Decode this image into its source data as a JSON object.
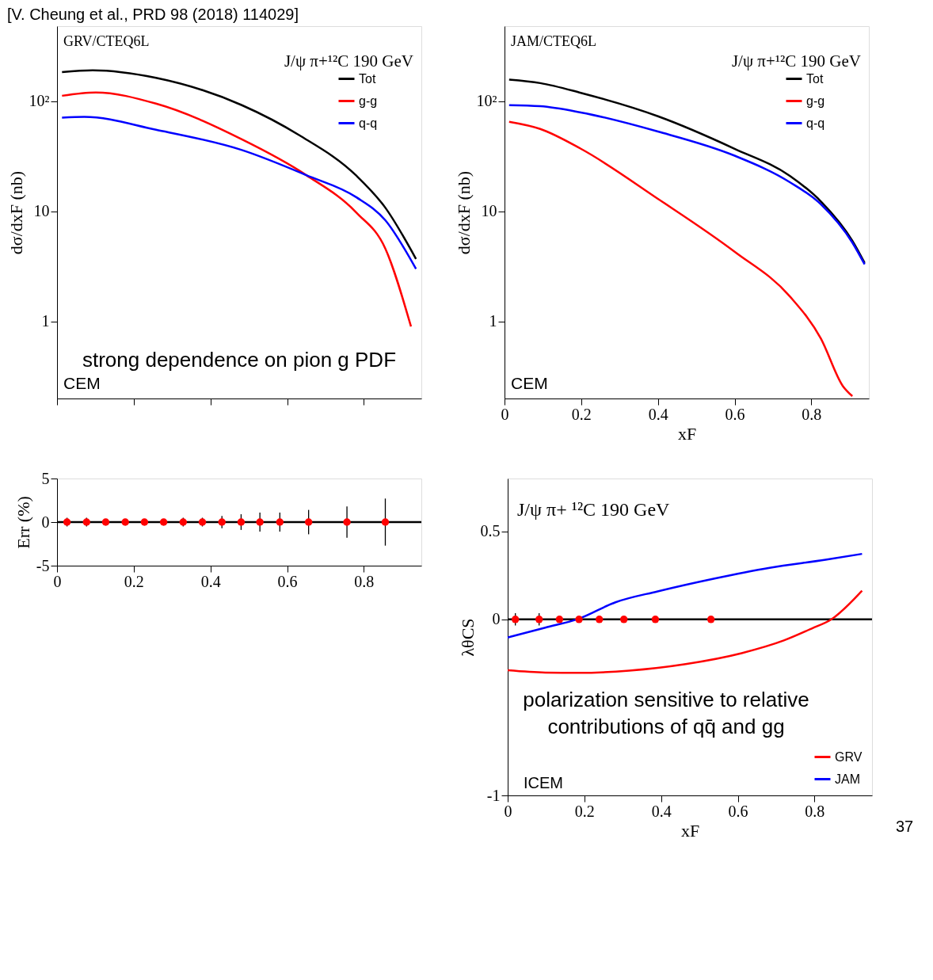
{
  "chart_data": [
    {
      "type": "line",
      "title": "[V. Cheung et al., PRD 98 (2018) 114029]",
      "ylabel": "dσ/dxF (nb)",
      "log": "y",
      "xlim": [
        0,
        0.95
      ],
      "ylim": [
        0.2,
        480
      ],
      "xticks": [
        0,
        0.2,
        0.4,
        0.6,
        0.8
      ],
      "yticks": [
        1,
        10,
        {
          "value": 100,
          "label": "10²"
        }
      ],
      "tick_labels": "y",
      "legend": "top right",
      "annotations": [
        "GRV/CTEQ6L",
        "J/ψ  π+¹²C  190 GeV",
        "CEM",
        "strong dependence on pion g PDF"
      ],
      "series": [
        {
          "name": "Tot",
          "color": "#000000",
          "x": [
            0.013,
            0.093,
            0.258,
            0.482,
            0.632,
            0.781,
            0.856,
            0.936
          ],
          "values": [
            184,
            191,
            163,
            92,
            49,
            21,
            10.8,
            3.7
          ]
        },
        {
          "name": "g-g",
          "color": "#ff0000",
          "x": [
            0.013,
            0.101,
            0.258,
            0.482,
            0.65,
            0.781,
            0.856,
            0.923
          ],
          "values": [
            112,
            120,
            95,
            45,
            21.3,
            9.7,
            4.6,
            0.9
          ]
        },
        {
          "name": "q-q",
          "color": "#0000ff",
          "x": [
            0.013,
            0.071,
            0.258,
            0.482,
            0.65,
            0.781,
            0.856,
            0.936
          ],
          "values": [
            71,
            72,
            55,
            36,
            21.3,
            13.4,
            8.3,
            3.0
          ]
        }
      ]
    },
    {
      "type": "line",
      "ylabel": "dσ/dxF (nb)",
      "xlabel": "xF",
      "log": "y",
      "xlim": [
        0,
        0.95
      ],
      "ylim": [
        0.2,
        480
      ],
      "xticks": [
        0,
        0.2,
        0.4,
        0.6,
        0.8
      ],
      "yticks": [
        1,
        10,
        {
          "value": 100,
          "label": "10²"
        }
      ],
      "legend": "top right",
      "annotations": [
        "JAM/CTEQ6L",
        "J/ψ  π+¹²C  190 GeV",
        "CEM"
      ],
      "series": [
        {
          "name": "Tot",
          "color": "#000000",
          "x": [
            0.012,
            0.093,
            0.199,
            0.4,
            0.6,
            0.744,
            0.825,
            0.907,
            0.939
          ],
          "values": [
            157,
            146,
            119,
            73,
            37,
            21,
            12.3,
            5.4,
            3.4
          ]
        },
        {
          "name": "g-g",
          "color": "#ff0000",
          "x": [
            0.012,
            0.093,
            0.199,
            0.4,
            0.6,
            0.744,
            0.825,
            0.882,
            0.907
          ],
          "values": [
            65,
            56,
            37,
            13,
            4.3,
            1.69,
            0.7,
            0.26,
            0.21
          ]
        },
        {
          "name": "q-q",
          "color": "#0000ff",
          "x": [
            0.012,
            0.093,
            0.199,
            0.4,
            0.6,
            0.744,
            0.825,
            0.907,
            0.939
          ],
          "values": [
            92,
            90,
            79,
            53,
            32,
            18.4,
            11.6,
            5.2,
            3.3
          ]
        }
      ]
    },
    {
      "type": "scatter",
      "ylabel": "Err (%)",
      "xlim": [
        0,
        0.95
      ],
      "ylim": [
        -5,
        5
      ],
      "xticks": [
        0,
        0.2,
        0.4,
        0.6,
        0.8
      ],
      "yticks": [
        -5,
        0,
        5
      ],
      "marker": "circle",
      "ref_lines": [
        {
          "axis": "y",
          "value": 0,
          "color": "#000000"
        }
      ],
      "series": [
        {
          "color": "#ff0000",
          "x": [
            0.026,
            0.077,
            0.127,
            0.178,
            0.228,
            0.278,
            0.329,
            0.379,
            0.43,
            0.48,
            0.529,
            0.581,
            0.656,
            0.756,
            0.856
          ],
          "values": [
            0,
            0,
            0,
            0,
            0,
            0,
            0,
            0,
            0,
            0,
            0,
            0,
            0,
            0,
            0
          ],
          "errors": [
            0.5,
            0.5,
            null,
            null,
            null,
            null,
            0.5,
            0.5,
            0.7,
            0.9,
            1.1,
            1.1,
            1.4,
            1.8,
            2.7
          ]
        }
      ]
    },
    {
      "type": "line",
      "ylabel": "λθCS",
      "xlabel": "xF",
      "xlim": [
        0,
        0.95
      ],
      "ylim": [
        -1,
        0.8
      ],
      "xticks": [
        0,
        0.2,
        0.4,
        0.6,
        0.8
      ],
      "yticks": [
        -1,
        0,
        0.5
      ],
      "legend": "bottom right",
      "ref_lines": [
        {
          "axis": "y",
          "value": 0,
          "color": "#000000"
        }
      ],
      "annotations": [
        "J/ψ  π+ ¹²C 190 GeV",
        "ICEM",
        "polarization sensitive to relative contributions of qq̄ and gg",
        "37"
      ],
      "series": [
        {
          "name": "GRV",
          "color": "#ff0000",
          "x": [
            0,
            0.098,
            0.186,
            0.317,
            0.464,
            0.61,
            0.72,
            0.793,
            0.844,
            0.924
          ],
          "values": [
            -0.289,
            -0.302,
            -0.304,
            -0.291,
            -0.254,
            -0.192,
            -0.12,
            -0.052,
            0,
            0.163
          ]
        },
        {
          "name": "JAM",
          "color": "#0000ff",
          "x": [
            0,
            0.098,
            0.186,
            0.281,
            0.391,
            0.537,
            0.683,
            0.829,
            0.924
          ],
          "values": [
            -0.103,
            -0.047,
            0.004,
            0.097,
            0.159,
            0.231,
            0.293,
            0.339,
            0.372
          ]
        },
        {
          "type": "scatter",
          "color": "#ff0000",
          "marker": "circle",
          "x": [
            0.02,
            0.082,
            0.135,
            0.186,
            0.239,
            0.303,
            0.385,
            0.53
          ],
          "values": [
            0,
            0,
            0,
            0,
            0,
            0,
            0,
            0
          ],
          "errors": [
            0.035,
            0.035,
            null,
            null,
            null,
            null,
            null,
            null
          ]
        }
      ]
    }
  ]
}
